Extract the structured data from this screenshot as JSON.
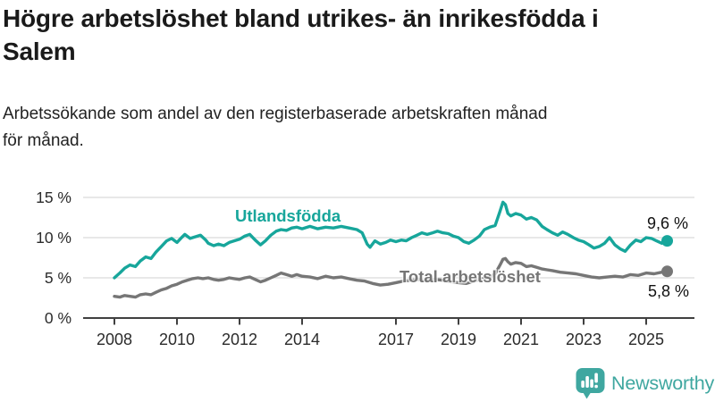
{
  "header": {
    "title_lines": [
      "Högre arbetslöshet bland utrikes- än inrikesfödda i",
      "Salem"
    ],
    "subtitle_lines": [
      "Arbetssökande som andel av den registerbaserade arbetskraften månad",
      "för månad."
    ]
  },
  "chart_data": {
    "type": "line",
    "title": "Högre arbetslöshet bland utrikes- än inrikesfödda i Salem",
    "subtitle": "Arbetssökande som andel av den registerbaserade arbetskraften månad för månad.",
    "unit": "%",
    "value_format": "decimal-comma",
    "grid": "horizontal-light",
    "legend": "inline-labels",
    "ylim": [
      0,
      15
    ],
    "xlim": [
      2007,
      2026.5
    ],
    "yticks": [
      {
        "value": 0,
        "label": "0 %"
      },
      {
        "value": 5,
        "label": "5 %"
      },
      {
        "value": 10,
        "label": "10 %"
      },
      {
        "value": 15,
        "label": "15 %"
      }
    ],
    "xticks": [
      {
        "year": 2008,
        "label": "2008"
      },
      {
        "year": 2010,
        "label": "2010"
      },
      {
        "year": 2012,
        "label": "2012"
      },
      {
        "year": 2014,
        "label": "2014"
      },
      {
        "year": 2017,
        "label": "2017"
      },
      {
        "year": 2019,
        "label": "2019"
      },
      {
        "year": 2021,
        "label": "2021"
      },
      {
        "year": 2023,
        "label": "2023"
      },
      {
        "year": 2025,
        "label": "2025"
      }
    ],
    "series": [
      {
        "name": "Utlandsfödda",
        "color": "#17a69b",
        "end_label": "9,6 %",
        "end_value": 9.6,
        "points": [
          [
            2008,
            5
          ],
          [
            2008.17,
            5.6
          ],
          [
            2008.33,
            6.2
          ],
          [
            2008.5,
            6.6
          ],
          [
            2008.67,
            6.4
          ],
          [
            2008.83,
            7.1
          ],
          [
            2009,
            7.6
          ],
          [
            2009.17,
            7.4
          ],
          [
            2009.33,
            8.2
          ],
          [
            2009.5,
            8.9
          ],
          [
            2009.67,
            9.6
          ],
          [
            2009.83,
            9.9
          ],
          [
            2010,
            9.4
          ],
          [
            2010.17,
            10.1
          ],
          [
            2010.25,
            10.4
          ],
          [
            2010.42,
            9.9
          ],
          [
            2010.58,
            10.1
          ],
          [
            2010.75,
            10.3
          ],
          [
            2010.92,
            9.7
          ],
          [
            2011,
            9.3
          ],
          [
            2011.17,
            9
          ],
          [
            2011.33,
            9.2
          ],
          [
            2011.5,
            9
          ],
          [
            2011.67,
            9.4
          ],
          [
            2011.83,
            9.6
          ],
          [
            2012,
            9.8
          ],
          [
            2012.17,
            10.2
          ],
          [
            2012.33,
            10.4
          ],
          [
            2012.5,
            9.7
          ],
          [
            2012.67,
            9.1
          ],
          [
            2012.83,
            9.6
          ],
          [
            2013,
            10.3
          ],
          [
            2013.17,
            10.8
          ],
          [
            2013.33,
            11
          ],
          [
            2013.5,
            10.9
          ],
          [
            2013.67,
            11.2
          ],
          [
            2013.83,
            11.3
          ],
          [
            2014,
            11.1
          ],
          [
            2014.25,
            11.4
          ],
          [
            2014.5,
            11.1
          ],
          [
            2014.75,
            11.3
          ],
          [
            2015,
            11.2
          ],
          [
            2015.25,
            11.4
          ],
          [
            2015.5,
            11.2
          ],
          [
            2015.75,
            11
          ],
          [
            2015.92,
            10.6
          ],
          [
            2016.08,
            9.2
          ],
          [
            2016.17,
            8.8
          ],
          [
            2016.33,
            9.6
          ],
          [
            2016.5,
            9.2
          ],
          [
            2016.67,
            9.4
          ],
          [
            2016.83,
            9.7
          ],
          [
            2017,
            9.5
          ],
          [
            2017.17,
            9.7
          ],
          [
            2017.33,
            9.6
          ],
          [
            2017.5,
            10
          ],
          [
            2017.67,
            10.3
          ],
          [
            2017.83,
            10.6
          ],
          [
            2018,
            10.4
          ],
          [
            2018.17,
            10.6
          ],
          [
            2018.33,
            10.8
          ],
          [
            2018.5,
            10.6
          ],
          [
            2018.67,
            10.5
          ],
          [
            2018.83,
            10.2
          ],
          [
            2019,
            10
          ],
          [
            2019.17,
            9.5
          ],
          [
            2019.33,
            9.3
          ],
          [
            2019.5,
            9.7
          ],
          [
            2019.67,
            10.2
          ],
          [
            2019.83,
            11
          ],
          [
            2020,
            11.3
          ],
          [
            2020.17,
            11.5
          ],
          [
            2020.33,
            13.3
          ],
          [
            2020.42,
            14.4
          ],
          [
            2020.5,
            14.1
          ],
          [
            2020.58,
            13
          ],
          [
            2020.67,
            12.7
          ],
          [
            2020.83,
            13
          ],
          [
            2021,
            12.8
          ],
          [
            2021.17,
            12.3
          ],
          [
            2021.33,
            12.5
          ],
          [
            2021.5,
            12.2
          ],
          [
            2021.67,
            11.4
          ],
          [
            2021.83,
            11
          ],
          [
            2022,
            10.6
          ],
          [
            2022.17,
            10.3
          ],
          [
            2022.33,
            10.7
          ],
          [
            2022.5,
            10.4
          ],
          [
            2022.67,
            10
          ],
          [
            2022.83,
            9.7
          ],
          [
            2023,
            9.5
          ],
          [
            2023.17,
            9.1
          ],
          [
            2023.33,
            8.7
          ],
          [
            2023.5,
            8.9
          ],
          [
            2023.67,
            9.3
          ],
          [
            2023.83,
            10
          ],
          [
            2024,
            9.1
          ],
          [
            2024.17,
            8.6
          ],
          [
            2024.33,
            8.3
          ],
          [
            2024.5,
            9.1
          ],
          [
            2024.67,
            9.7
          ],
          [
            2024.83,
            9.5
          ],
          [
            2025,
            10
          ],
          [
            2025.17,
            9.9
          ],
          [
            2025.33,
            9.6
          ],
          [
            2025.5,
            9.3
          ],
          [
            2025.67,
            9.6
          ]
        ]
      },
      {
        "name": "Total arbetslöshet",
        "color": "#767676",
        "end_label": "5,8 %",
        "end_value": 5.8,
        "points": [
          [
            2008,
            2.7
          ],
          [
            2008.17,
            2.6
          ],
          [
            2008.33,
            2.8
          ],
          [
            2008.5,
            2.7
          ],
          [
            2008.67,
            2.6
          ],
          [
            2008.83,
            2.9
          ],
          [
            2009,
            3
          ],
          [
            2009.17,
            2.9
          ],
          [
            2009.33,
            3.2
          ],
          [
            2009.5,
            3.5
          ],
          [
            2009.67,
            3.7
          ],
          [
            2009.83,
            4
          ],
          [
            2010,
            4.2
          ],
          [
            2010.17,
            4.5
          ],
          [
            2010.33,
            4.7
          ],
          [
            2010.5,
            4.9
          ],
          [
            2010.67,
            5
          ],
          [
            2010.83,
            4.9
          ],
          [
            2011,
            5
          ],
          [
            2011.17,
            4.8
          ],
          [
            2011.33,
            4.7
          ],
          [
            2011.5,
            4.8
          ],
          [
            2011.67,
            5
          ],
          [
            2011.83,
            4.9
          ],
          [
            2012,
            4.8
          ],
          [
            2012.17,
            5
          ],
          [
            2012.33,
            5.1
          ],
          [
            2012.5,
            4.8
          ],
          [
            2012.67,
            4.5
          ],
          [
            2012.83,
            4.7
          ],
          [
            2013,
            5
          ],
          [
            2013.17,
            5.3
          ],
          [
            2013.33,
            5.6
          ],
          [
            2013.5,
            5.4
          ],
          [
            2013.67,
            5.2
          ],
          [
            2013.83,
            5.4
          ],
          [
            2014,
            5.2
          ],
          [
            2014.25,
            5.1
          ],
          [
            2014.5,
            4.9
          ],
          [
            2014.75,
            5.2
          ],
          [
            2015,
            5
          ],
          [
            2015.25,
            5.1
          ],
          [
            2015.5,
            4.9
          ],
          [
            2015.75,
            4.7
          ],
          [
            2016,
            4.6
          ],
          [
            2016.25,
            4.3
          ],
          [
            2016.5,
            4.1
          ],
          [
            2016.75,
            4.2
          ],
          [
            2017,
            4.4
          ],
          [
            2017.25,
            4.6
          ],
          [
            2017.5,
            4.7
          ],
          [
            2017.75,
            4.8
          ],
          [
            2018,
            4.6
          ],
          [
            2018.25,
            4.8
          ],
          [
            2018.5,
            4.7
          ],
          [
            2018.75,
            4.5
          ],
          [
            2019,
            4.4
          ],
          [
            2019.25,
            4.3
          ],
          [
            2019.5,
            4.6
          ],
          [
            2019.75,
            4.9
          ],
          [
            2020,
            5.1
          ],
          [
            2020.17,
            5.5
          ],
          [
            2020.33,
            6.6
          ],
          [
            2020.42,
            7.3
          ],
          [
            2020.5,
            7.4
          ],
          [
            2020.58,
            7
          ],
          [
            2020.67,
            6.7
          ],
          [
            2020.83,
            6.9
          ],
          [
            2021,
            6.8
          ],
          [
            2021.17,
            6.4
          ],
          [
            2021.33,
            6.5
          ],
          [
            2021.5,
            6.3
          ],
          [
            2021.67,
            6.1
          ],
          [
            2021.83,
            6
          ],
          [
            2022,
            5.9
          ],
          [
            2022.25,
            5.7
          ],
          [
            2022.5,
            5.6
          ],
          [
            2022.75,
            5.5
          ],
          [
            2023,
            5.3
          ],
          [
            2023.25,
            5.1
          ],
          [
            2023.5,
            5
          ],
          [
            2023.75,
            5.1
          ],
          [
            2024,
            5.2
          ],
          [
            2024.25,
            5.1
          ],
          [
            2024.5,
            5.4
          ],
          [
            2024.75,
            5.3
          ],
          [
            2025,
            5.6
          ],
          [
            2025.25,
            5.5
          ],
          [
            2025.5,
            5.7
          ],
          [
            2025.67,
            5.8
          ]
        ]
      }
    ]
  },
  "footer": {
    "brand": "Newsworthy",
    "brand_color": "#3fa7a0",
    "logo_icon": "bar-chart-speech-bubble-icon"
  }
}
